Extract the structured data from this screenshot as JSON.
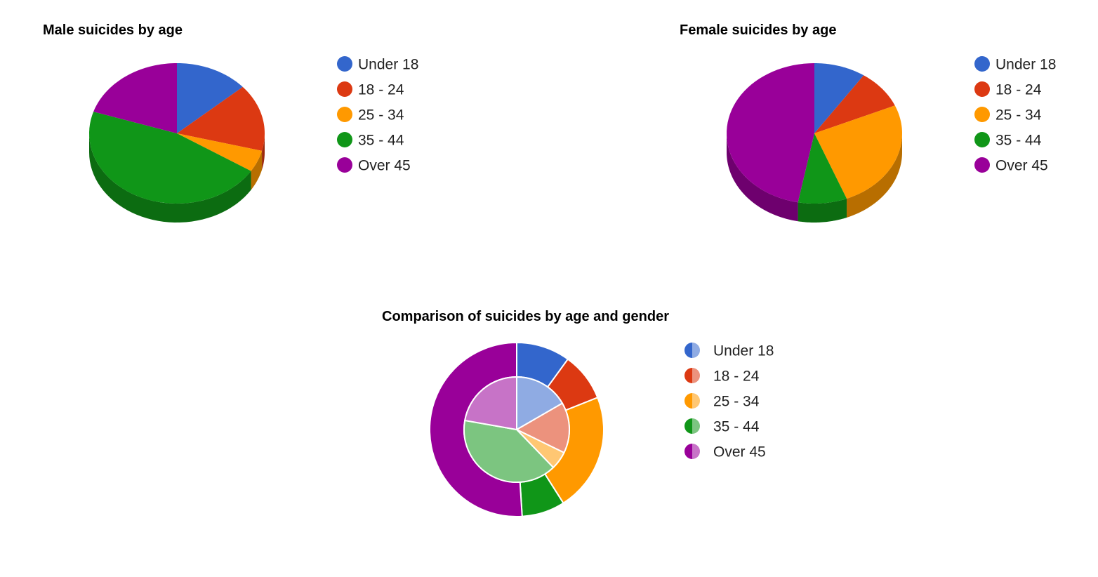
{
  "colors": {
    "Under 18": "#3366cc",
    "18 - 24": "#dc3912",
    "25 - 34": "#ff9900",
    "35 - 44": "#109618",
    "Over 45": "#990099"
  },
  "chart_data": [
    {
      "type": "pie",
      "style": "3d",
      "title": "Male suicides by age",
      "legend_position": "right",
      "categories": [
        "Under 18",
        "18 - 24",
        "25 - 34",
        "35 - 44",
        "Over 45"
      ],
      "values": [
        13.5,
        15.5,
        5,
        46,
        20
      ]
    },
    {
      "type": "pie",
      "style": "3d",
      "title": "Female suicides by age",
      "legend_position": "right",
      "categories": [
        "Under 18",
        "18 - 24",
        "25 - 34",
        "35 - 44",
        "Over 45"
      ],
      "values": [
        9.5,
        9,
        25.5,
        9,
        47
      ]
    },
    {
      "type": "pie",
      "style": "nested-donut",
      "title": "Comparison of suicides by age and gender",
      "legend_position": "right",
      "categories": [
        "Under 18",
        "18 - 24",
        "25 - 34",
        "35 - 44",
        "Over 45"
      ],
      "series": [
        {
          "values": [
            10,
            9,
            22,
            8,
            51
          ]
        },
        {
          "values": [
            15,
            14,
            5,
            36,
            20
          ]
        }
      ]
    }
  ]
}
